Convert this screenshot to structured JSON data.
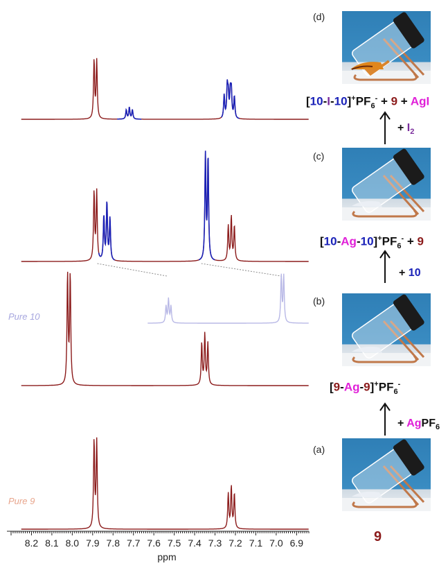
{
  "chart_data": {
    "type": "line",
    "xlabel": "ppm",
    "xlim": [
      8.3,
      6.84
    ],
    "x_reversed": true,
    "ticks": [
      8.2,
      8.1,
      8.0,
      7.9,
      7.8,
      7.7,
      7.6,
      7.5,
      7.4,
      7.3,
      7.2,
      7.1,
      7.0,
      6.9
    ],
    "series": [
      {
        "name": "",
        "color": "#8b1a1a",
        "peaks": [
          {
            "ppm": 7.893,
            "h": 1.0
          },
          {
            "ppm": 7.88,
            "h": 1.0
          },
          {
            "ppm": 7.235,
            "h": 0.38
          },
          {
            "ppm": 7.22,
            "h": 0.46
          },
          {
            "ppm": 7.205,
            "h": 0.38
          }
        ],
        "blue_regions": [
          [
            7.78,
            7.66
          ],
          [
            7.27,
            7.18
          ]
        ],
        "peaks_blue": [
          {
            "ppm": 7.735,
            "h": 0.16
          },
          {
            "ppm": 7.72,
            "h": 0.2
          },
          {
            "ppm": 7.705,
            "h": 0.16
          },
          {
            "ppm": 7.255,
            "h": 0.4
          },
          {
            "ppm": 7.24,
            "h": 0.52
          },
          {
            "ppm": 7.225,
            "h": 0.42
          }
        ]
      },
      {
        "name": "",
        "color": "#8b1a1a",
        "peaks": [
          {
            "ppm": 7.893,
            "h": 0.65
          },
          {
            "ppm": 7.88,
            "h": 0.65
          },
          {
            "ppm": 7.235,
            "h": 0.33
          },
          {
            "ppm": 7.22,
            "h": 0.42
          },
          {
            "ppm": 7.205,
            "h": 0.33
          }
        ],
        "blue_regions": [
          [
            7.87,
            7.79
          ],
          [
            7.38,
            7.3
          ]
        ],
        "peaks_blue": [
          {
            "ppm": 7.845,
            "h": 0.42
          },
          {
            "ppm": 7.83,
            "h": 0.55
          },
          {
            "ppm": 7.815,
            "h": 0.4
          },
          {
            "ppm": 7.347,
            "h": 1.0
          },
          {
            "ppm": 7.334,
            "h": 0.98
          }
        ]
      },
      {
        "name": "Pure 10",
        "color": "#b8b8e6",
        "peaks": [
          {
            "ppm": 7.54,
            "h": 0.35
          },
          {
            "ppm": 7.528,
            "h": 0.5
          },
          {
            "ppm": 7.516,
            "h": 0.35
          },
          {
            "ppm": 6.975,
            "h": 1.0
          },
          {
            "ppm": 6.963,
            "h": 1.0
          }
        ]
      },
      {
        "name": "",
        "color": "#8b1a1a",
        "peaks": [
          {
            "ppm": 8.023,
            "h": 1.0
          },
          {
            "ppm": 8.01,
            "h": 1.0
          },
          {
            "ppm": 7.365,
            "h": 0.38
          },
          {
            "ppm": 7.35,
            "h": 0.46
          },
          {
            "ppm": 7.335,
            "h": 0.38
          }
        ]
      },
      {
        "name": "Pure 9",
        "color": "#8b1a1a",
        "peaks": [
          {
            "ppm": 7.893,
            "h": 1.0
          },
          {
            "ppm": 7.88,
            "h": 1.0
          },
          {
            "ppm": 7.235,
            "h": 0.4
          },
          {
            "ppm": 7.22,
            "h": 0.48
          },
          {
            "ppm": 7.205,
            "h": 0.4
          }
        ]
      }
    ],
    "series_label_colors": {
      "Pure 10": "#a7a7df",
      "Pure 9": "#e8a58c"
    },
    "shift_lines": [
      {
        "from_ppm": 7.85,
        "to_ppm": 7.53
      },
      {
        "from_ppm": 7.34,
        "to_ppm": 6.97
      }
    ]
  },
  "stages": [
    {
      "id": "d",
      "label": "(d)"
    },
    {
      "id": "c",
      "label": "(c)"
    },
    {
      "id": "b",
      "label": "(b)"
    },
    {
      "id": "a",
      "label": "(a)"
    }
  ],
  "formulas": {
    "d": {
      "open": "[",
      "a": "10",
      "d1": "-",
      "m": "I",
      "d2": "-",
      "b": "10",
      "close": "]",
      "sup": "+",
      "pf": "PF",
      "sub": "6",
      "sup2": "-",
      "plus1": " + ",
      "n9": "9",
      "plus2": " + ",
      "ag": "AgI"
    },
    "c": {
      "open": "[",
      "a": "10",
      "d1": "-",
      "m": "Ag",
      "d2": "-",
      "b": "10",
      "close": "]",
      "sup": "+",
      "pf": "PF",
      "sub": "6",
      "sup2": "-",
      "plus1": " + ",
      "n9": "9"
    },
    "b": {
      "open": "[",
      "a": "9",
      "d1": "-",
      "m": "Ag",
      "d2": "-",
      "b": "9",
      "close": "]",
      "sup": "+",
      "pf": "PF",
      "sub": "6",
      "sup2": "-"
    }
  },
  "reagents": {
    "i2": {
      "plus": "+ ",
      "name": "I",
      "sub": "2"
    },
    "ten": {
      "plus": "+ ",
      "name": "10"
    },
    "agpf6": {
      "plus": "+ ",
      "ag": "Ag",
      "pf": "PF",
      "sub": "6"
    }
  },
  "start_compound": "9"
}
